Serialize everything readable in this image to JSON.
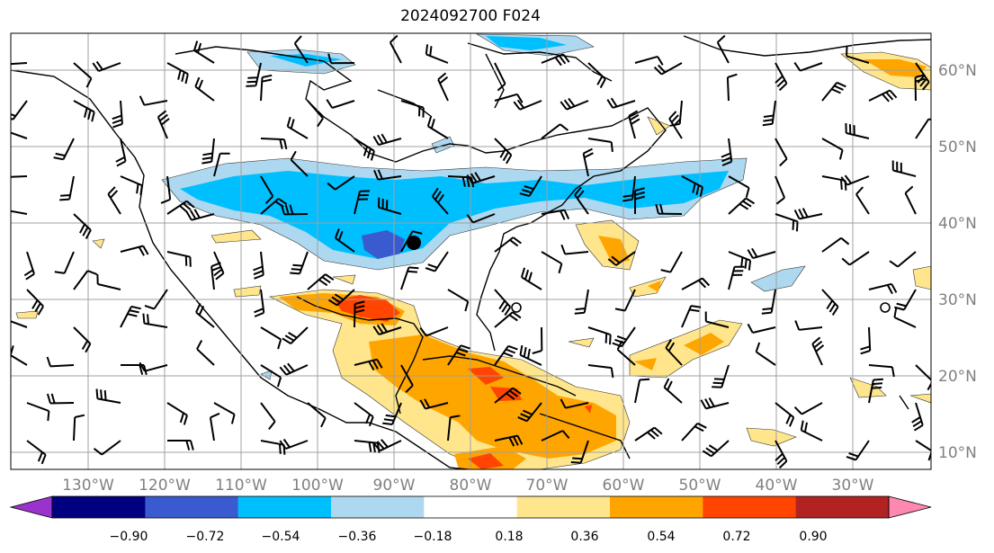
{
  "title": "2024092700 F024",
  "map": {
    "lon_labels": [
      "130°W",
      "120°W",
      "110°W",
      "100°W",
      "90°W",
      "80°W",
      "70°W",
      "60°W",
      "50°W",
      "40°W",
      "30°W"
    ],
    "lat_labels": [
      "60°N",
      "50°N",
      "40°N",
      "30°N",
      "20°N",
      "10°N"
    ],
    "marker": "black-dot"
  },
  "colorbar": {
    "ticks": [
      "−0.90",
      "−0.72",
      "−0.54",
      "−0.36",
      "−0.18",
      "0.18",
      "0.36",
      "0.54",
      "0.72",
      "0.90"
    ],
    "colors": [
      "#9933cc",
      "#000080",
      "#3a5bd0",
      "#00bfff",
      "#add8f0",
      "#ffffff",
      "#ffe68c",
      "#ffa500",
      "#ff4500",
      "#b22222",
      "#ff88b0"
    ],
    "extend": "both"
  }
}
